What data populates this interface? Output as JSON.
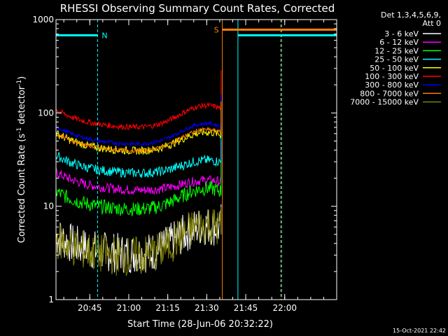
{
  "chart_data": {
    "type": "line",
    "title": "RHESSI Observing Summary Count Rates, Corrected",
    "xlabel": "Start Time (28-Jun-06 20:32:22)",
    "ylabel_main": "Corrected Count Rate (s",
    "ylabel_sup1": "-1",
    "ylabel_mid": " detector",
    "ylabel_sup2": "-1",
    "ylabel_end": ")",
    "y_scale": "log",
    "ylim": [
      1,
      1000
    ],
    "y_ticks": [
      {
        "value": 1,
        "label": "1"
      },
      {
        "value": 10,
        "label": "10"
      },
      {
        "value": 100,
        "label": "100"
      },
      {
        "value": 1000,
        "label": "1000"
      }
    ],
    "x_range_minutes": [
      0,
      108
    ],
    "x_ticks": [
      {
        "minute": 13,
        "label": "20:45"
      },
      {
        "minute": 28,
        "label": "21:00"
      },
      {
        "minute": 43,
        "label": "21:15"
      },
      {
        "minute": 58,
        "label": "21:30"
      },
      {
        "minute": 73,
        "label": "21:45"
      },
      {
        "minute": 88,
        "label": "22:00"
      }
    ],
    "legend_header": [
      "Det 1,3,4,5,6,9,",
      "Att 0"
    ],
    "legend_position": "right",
    "series": [
      {
        "name": "3 - 6 keV",
        "color": "#ffffff",
        "base": 3.0,
        "amp": 3.2,
        "noise": 0.5
      },
      {
        "name": "6 - 12 keV",
        "color": "#ff00ff",
        "base": 14.5,
        "amp": 4.5,
        "noise": 0.12
      },
      {
        "name": "12 - 25 keV",
        "color": "#00ff00",
        "base": 9.0,
        "amp": 6.5,
        "noise": 0.18
      },
      {
        "name": "25 - 50 keV",
        "color": "#00ffff",
        "base": 22.0,
        "amp": 9.0,
        "noise": 0.12
      },
      {
        "name": "50 - 100 keV",
        "color": "#ffff00",
        "base": 38.0,
        "amp": 24.0,
        "noise": 0.1
      },
      {
        "name": "100 - 300 keV",
        "color": "#ff0000",
        "base": 68.0,
        "amp": 52.0,
        "noise": 0.07
      },
      {
        "name": "300 - 800 keV",
        "color": "#0000ff",
        "base": 45.0,
        "amp": 32.0,
        "noise": 0.05
      },
      {
        "name": "800 - 7000 keV",
        "color": "#ff8000",
        "base": 38.0,
        "amp": 28.0,
        "noise": 0.05
      },
      {
        "name": "7000 - 15000 keV",
        "color": "#808000",
        "base": 2.8,
        "amp": 3.5,
        "noise": 0.5
      }
    ],
    "flags": [
      {
        "label": "N",
        "color": "#00ffff",
        "start_minute": 0,
        "end_minute": 16,
        "level": 680
      },
      {
        "label": "S",
        "color": "#ff8000",
        "start_minute": 64,
        "end_minute": 108,
        "level": 780
      },
      {
        "label": "",
        "color": "#00ffff",
        "start_minute": 70,
        "end_minute": 108,
        "level": 680
      }
    ],
    "markers": [
      {
        "minute": 0,
        "color": "#00ffff",
        "style": "solid"
      },
      {
        "minute": 16,
        "color": "#00ffff",
        "style": "dashed"
      },
      {
        "minute": 64,
        "color": "#ff8000",
        "style": "solid"
      },
      {
        "minute": 70,
        "color": "#00ffff",
        "style": "solid"
      },
      {
        "minute": 86.5,
        "color": "#ff8000",
        "style": "dashed"
      },
      {
        "minute": 86.5,
        "color": "#00ffff",
        "style": "dashed"
      }
    ],
    "orbit_gap_start_minute": 63.5
  },
  "footer": {
    "timestamp": "15-Oct-2021 22:42"
  }
}
